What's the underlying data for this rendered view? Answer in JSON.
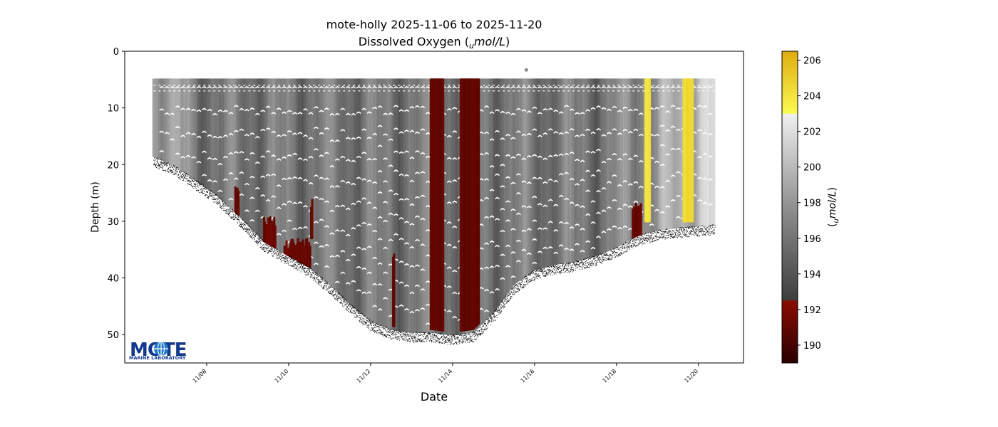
{
  "chart_data": {
    "type": "scatter",
    "title": "mote-holly 2025-11-06 to 2025-11-20",
    "subtitle_prefix": "Dissolved Oxygen (",
    "subtitle_unit_sub": "u",
    "subtitle_unit_rest": "mol/L",
    "subtitle_suffix": ")",
    "xlabel": "Date",
    "ylabel": "Depth (m)",
    "x_ticks": [
      "11/08",
      "11/10",
      "11/12",
      "11/14",
      "11/16",
      "11/18",
      "11/20"
    ],
    "x_tick_days": [
      8,
      10,
      12,
      14,
      16,
      18,
      20
    ],
    "xlim_days": [
      6.0,
      21.1
    ],
    "ylim": [
      55,
      0
    ],
    "y_ticks": [
      0,
      10,
      20,
      30,
      40,
      50
    ],
    "y_inverted": true,
    "grid": false,
    "colorbar": {
      "label_sub": "u",
      "label_rest": "mol/L",
      "range": [
        189,
        206.5
      ],
      "ticks": [
        190,
        192,
        194,
        196,
        198,
        200,
        202,
        204,
        206
      ],
      "stops": [
        {
          "value": 189.0,
          "color": "#2a0000"
        },
        {
          "value": 192.5,
          "color": "#8b0c02"
        },
        {
          "value": 192.51,
          "color": "#3d3d3d"
        },
        {
          "value": 197.5,
          "color": "#8c8c8c"
        },
        {
          "value": 202.99,
          "color": "#f0f0f0"
        },
        {
          "value": 203.0,
          "color": "#fafa50"
        },
        {
          "value": 206.5,
          "color": "#e0ac10"
        }
      ]
    },
    "bottom_profile": [
      {
        "day": 6.7,
        "depth": 18.5
      },
      {
        "day": 7.2,
        "depth": 20.0
      },
      {
        "day": 7.6,
        "depth": 22.0
      },
      {
        "day": 8.2,
        "depth": 25.0
      },
      {
        "day": 8.8,
        "depth": 29.0
      },
      {
        "day": 9.4,
        "depth": 33.5
      },
      {
        "day": 10.0,
        "depth": 36.0
      },
      {
        "day": 10.5,
        "depth": 38.0
      },
      {
        "day": 11.0,
        "depth": 41.0
      },
      {
        "day": 11.5,
        "depth": 44.5
      },
      {
        "day": 12.0,
        "depth": 47.5
      },
      {
        "day": 12.5,
        "depth": 49.0
      },
      {
        "day": 13.0,
        "depth": 49.5
      },
      {
        "day": 13.5,
        "depth": 49.5
      },
      {
        "day": 14.0,
        "depth": 50.0
      },
      {
        "day": 14.5,
        "depth": 49.5
      },
      {
        "day": 15.0,
        "depth": 46.0
      },
      {
        "day": 15.5,
        "depth": 41.0
      },
      {
        "day": 16.0,
        "depth": 38.5
      },
      {
        "day": 16.5,
        "depth": 37.5
      },
      {
        "day": 17.0,
        "depth": 37.0
      },
      {
        "day": 17.5,
        "depth": 36.0
      },
      {
        "day": 18.0,
        "depth": 34.5
      },
      {
        "day": 18.5,
        "depth": 32.5
      },
      {
        "day": 19.0,
        "depth": 31.5
      },
      {
        "day": 19.5,
        "depth": 31.0
      },
      {
        "day": 20.0,
        "depth": 30.8
      },
      {
        "day": 20.4,
        "depth": 30.5
      }
    ],
    "surface_depth": 5,
    "data_day_range": [
      6.7,
      20.4
    ],
    "isolated_point": {
      "day": 15.8,
      "depth": 3.3
    },
    "bands": [
      {
        "name": "low-do-band-1",
        "day_start": 13.47,
        "day_end": 13.77,
        "do": 191
      },
      {
        "name": "low-do-band-2",
        "day_start": 14.2,
        "day_end": 14.65,
        "do": 191
      },
      {
        "name": "high-do-band-1",
        "day_start": 18.71,
        "day_end": 18.81,
        "do": 204,
        "depth_end": 30
      },
      {
        "name": "high-do-band-2",
        "day_start": 19.64,
        "day_end": 19.86,
        "do": 204.5,
        "depth_end": 30
      }
    ],
    "bottom_low_do_patches": [
      {
        "day_start": 8.7,
        "day_end": 8.78,
        "depth_start": 24,
        "depth_end": 29
      },
      {
        "day_start": 9.4,
        "day_end": 9.7,
        "depth_start": 29,
        "depth_end": 35
      },
      {
        "day_start": 9.9,
        "day_end": 10.55,
        "depth_start": 33,
        "depth_end": 38
      },
      {
        "day_start": 10.55,
        "day_end": 10.6,
        "depth_start": 26,
        "depth_end": 33
      },
      {
        "day_start": 12.55,
        "day_end": 12.6,
        "depth_start": 35,
        "depth_end": 48.5
      },
      {
        "day_start": 18.4,
        "day_end": 18.6,
        "depth_start": 26,
        "depth_end": 33
      }
    ]
  },
  "logo": {
    "main": "MOTE",
    "sub": "MARINE LABORATORY"
  }
}
